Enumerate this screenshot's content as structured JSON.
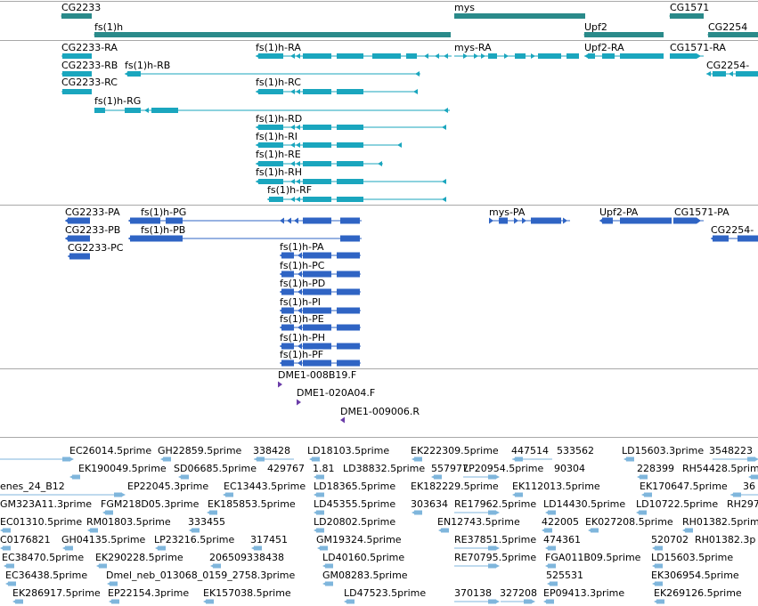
{
  "colors": {
    "gene": "#2a8a8a",
    "transcript": "#1aa6be",
    "protein": "#2f64c4",
    "clone": "#6a3ca8",
    "est": "#7fb6dc",
    "divider": "#a8a8a8"
  },
  "genes": [
    {
      "label": "CG2233"
    },
    {
      "label": "fs(1)h"
    },
    {
      "label": "mys"
    },
    {
      "label": "Upf2"
    },
    {
      "label": "CG1571"
    },
    {
      "label": "CG2254"
    }
  ],
  "transcripts": [
    {
      "label": "CG2233-RA"
    },
    {
      "label": "fs(1)h-RA"
    },
    {
      "label": "mys-RA"
    },
    {
      "label": "Upf2-RA"
    },
    {
      "label": "CG1571-RA"
    },
    {
      "label": "CG2233-RB"
    },
    {
      "label": "fs(1)h-RB"
    },
    {
      "label": "CG2254-"
    },
    {
      "label": "CG2233-RC"
    },
    {
      "label": "fs(1)h-RC"
    },
    {
      "label": "fs(1)h-RG"
    },
    {
      "label": "fs(1)h-RD"
    },
    {
      "label": "fs(1)h-RI"
    },
    {
      "label": "fs(1)h-RE"
    },
    {
      "label": "fs(1)h-RH"
    },
    {
      "label": "fs(1)h-RF"
    }
  ],
  "proteins": [
    {
      "label": "CG2233-PA"
    },
    {
      "label": "fs(1)h-PG"
    },
    {
      "label": "mys-PA"
    },
    {
      "label": "Upf2-PA"
    },
    {
      "label": "CG1571-PA"
    },
    {
      "label": "CG2233-PB"
    },
    {
      "label": "fs(1)h-PB"
    },
    {
      "label": "CG2254-"
    },
    {
      "label": "CG2233-PC"
    },
    {
      "label": "fs(1)h-PA"
    },
    {
      "label": "fs(1)h-PC"
    },
    {
      "label": "fs(1)h-PD"
    },
    {
      "label": "fs(1)h-PI"
    },
    {
      "label": "fs(1)h-PE"
    },
    {
      "label": "fs(1)h-PH"
    },
    {
      "label": "fs(1)h-PF"
    }
  ],
  "clones": [
    {
      "label": "DME1-008B19.F"
    },
    {
      "label": "DME1-020A04.F"
    },
    {
      "label": "DME1-009006.R"
    }
  ],
  "ests": [
    {
      "label": "EC26014.5prime"
    },
    {
      "label": "GH22859.5prime"
    },
    {
      "label": "338428"
    },
    {
      "label": "LD18103.5prime"
    },
    {
      "label": "EK222309.5prime"
    },
    {
      "label": "447514"
    },
    {
      "label": "533562"
    },
    {
      "label": "LD15603.3prime"
    },
    {
      "label": "3548223"
    },
    {
      "label": "EK190049.5prime"
    },
    {
      "label": "SD06685.5prime"
    },
    {
      "label": "429767"
    },
    {
      "label": "1.81"
    },
    {
      "label": "LD38832.5prime"
    },
    {
      "label": "557977"
    },
    {
      "label": "LP20954.5prime"
    },
    {
      "label": "90304"
    },
    {
      "label": "228399"
    },
    {
      "label": "RH54428.5prime"
    },
    {
      "label": "enes_24_B12"
    },
    {
      "label": "EP22045.3prime"
    },
    {
      "label": "EC13443.5prime"
    },
    {
      "label": "LD18365.5prime"
    },
    {
      "label": "EK182229.5prime"
    },
    {
      "label": "EK112013.5prime"
    },
    {
      "label": "EK170647.5prime"
    },
    {
      "label": "36"
    },
    {
      "label": "GM323A11.3prime"
    },
    {
      "label": "FGM218D05.3prime"
    },
    {
      "label": "EK185853.5prime"
    },
    {
      "label": "LD45355.5prime"
    },
    {
      "label": "303634"
    },
    {
      "label": "RE17962.5prime"
    },
    {
      "label": "LD14430.5prime"
    },
    {
      "label": "LD10722.5prime"
    },
    {
      "label": "RH297"
    },
    {
      "label": "EC01310.5prime"
    },
    {
      "label": "RM01803.5prime"
    },
    {
      "label": "333455"
    },
    {
      "label": "LD20802.5prime"
    },
    {
      "label": "EN12743.5prime"
    },
    {
      "label": "422005"
    },
    {
      "label": "EK027208.5prime"
    },
    {
      "label": "RH01382.5prime"
    },
    {
      "label": "C0176821"
    },
    {
      "label": "GH04135.5prime"
    },
    {
      "label": "LP23216.5prime"
    },
    {
      "label": "317451"
    },
    {
      "label": "GM19324.5prime"
    },
    {
      "label": "RE37851.5prime"
    },
    {
      "label": "474361"
    },
    {
      "label": "520702"
    },
    {
      "label": "RH01382.3p"
    },
    {
      "label": "EC38470.5prime"
    },
    {
      "label": "EK290228.5prime"
    },
    {
      "label": "206509338438"
    },
    {
      "label": "LD40160.5prime"
    },
    {
      "label": "RE70795.5prime"
    },
    {
      "label": "FGA011B09.5prime"
    },
    {
      "label": "LD15603.5prime"
    },
    {
      "label": "EC36438.5prime"
    },
    {
      "label": "Dmel_neb_013068_0159_2758.3prime"
    },
    {
      "label": "GM08283.5prime"
    },
    {
      "label": "525531"
    },
    {
      "label": "EK306954.5prime"
    },
    {
      "label": "EK286917.5prime"
    },
    {
      "label": "EP22154.3prime"
    },
    {
      "label": "EK157038.5prime"
    },
    {
      "label": "LD47523.5prime"
    },
    {
      "label": "370138"
    },
    {
      "label": "327208"
    },
    {
      "label": "EP09413.3prime"
    },
    {
      "label": "EK269126.5prime"
    }
  ]
}
